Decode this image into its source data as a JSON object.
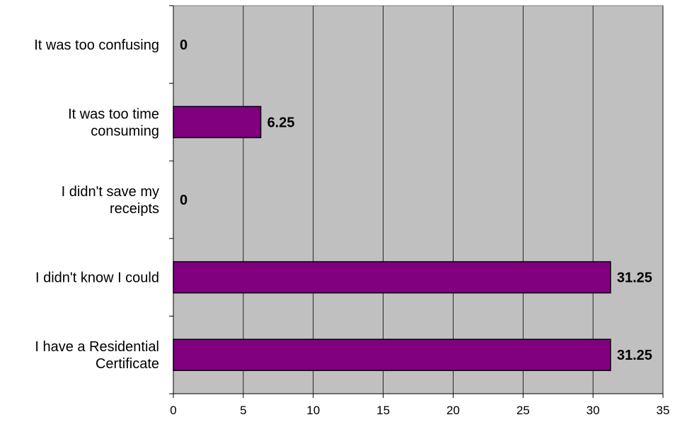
{
  "chart_data": {
    "type": "bar",
    "orientation": "horizontal",
    "categories": [
      "It was too confusing",
      "It was too time consuming",
      "I didn't save my receipts",
      "I didn't know I could",
      "I have a Residential Certificate"
    ],
    "category_lines": [
      [
        "It was too confusing"
      ],
      [
        "It was too time",
        "consuming"
      ],
      [
        "I didn't save my",
        "receipts"
      ],
      [
        "I didn't know I could"
      ],
      [
        "I have a Residential",
        "Certificate"
      ]
    ],
    "values": [
      0,
      6.25,
      0,
      31.25,
      31.25
    ],
    "data_labels": [
      "0",
      "6.25",
      "0",
      "31.25",
      "31.25"
    ],
    "xlim": [
      0,
      35
    ],
    "x_ticks": [
      0,
      5,
      10,
      15,
      20,
      25,
      30,
      35
    ],
    "x_tick_labels": [
      "0",
      "5",
      "10",
      "15",
      "20",
      "25",
      "30",
      "35"
    ],
    "grid": "vertical",
    "legend": "none",
    "colors": {
      "bar_fill": "#800080",
      "bar_stroke": "#000000",
      "plot_background": "#c0c0c0",
      "gridline": "#000000"
    }
  }
}
